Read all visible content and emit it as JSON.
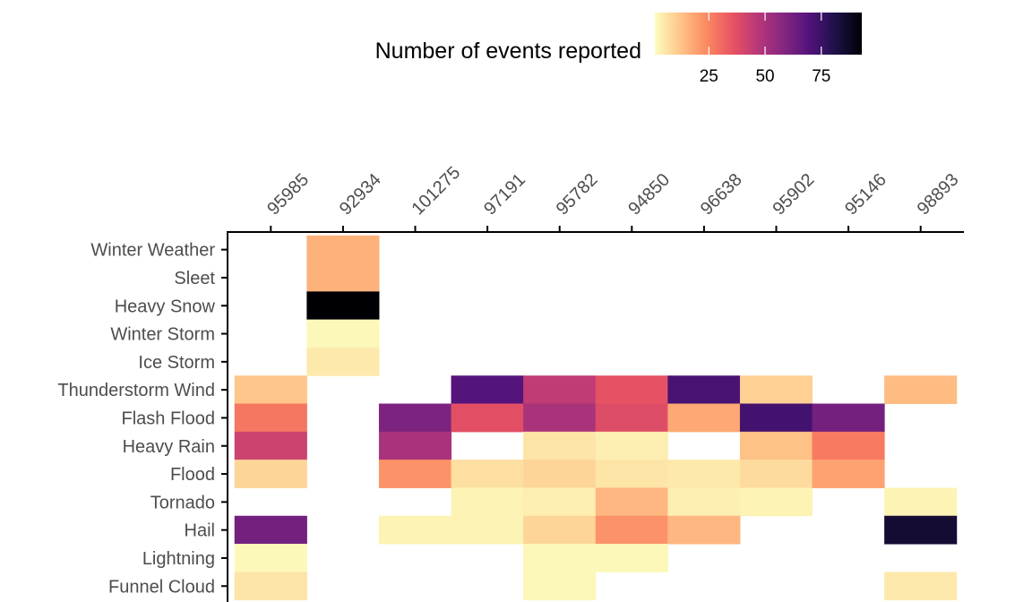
{
  "chart_data": {
    "type": "heatmap",
    "legend": {
      "title": "Number of events reported",
      "ticks": [
        25,
        50,
        75
      ],
      "range": [
        1,
        93
      ],
      "position": "top",
      "colors": [
        "#fcfdbf",
        "#fec488",
        "#fc8961",
        "#e85362",
        "#b73779",
        "#832681",
        "#51127c",
        "#1d1147",
        "#000004"
      ]
    },
    "x_axis": {
      "position": "top",
      "categories": [
        "95985",
        "92934",
        "101275",
        "97191",
        "95782",
        "94850",
        "96638",
        "95902",
        "95146",
        "98893"
      ]
    },
    "y_axis": {
      "categories": [
        "Winter Weather",
        "Sleet",
        "Heavy Snow",
        "Winter Storm",
        "Ice Storm",
        "Thunderstorm Wind",
        "Flash Flood",
        "Heavy Rain",
        "Flood",
        "Tornado",
        "Hail",
        "Lightning",
        "Funnel Cloud"
      ]
    },
    "values": [
      [
        null,
        16,
        null,
        null,
        null,
        null,
        null,
        null,
        null,
        null
      ],
      [
        null,
        16,
        null,
        null,
        null,
        null,
        null,
        null,
        null,
        null
      ],
      [
        null,
        93,
        null,
        null,
        null,
        null,
        null,
        null,
        null,
        null
      ],
      [
        null,
        2,
        null,
        null,
        null,
        null,
        null,
        null,
        null,
        null
      ],
      [
        null,
        5,
        null,
        null,
        null,
        null,
        null,
        null,
        null,
        null
      ],
      [
        12,
        null,
        null,
        69,
        45,
        36,
        72,
        10,
        null,
        14
      ],
      [
        28,
        null,
        60,
        37,
        50,
        38,
        18,
        73,
        62,
        null
      ],
      [
        42,
        null,
        50,
        null,
        6,
        4,
        null,
        13,
        27,
        null
      ],
      [
        9,
        null,
        22,
        7,
        9,
        6,
        5,
        8,
        19,
        null
      ],
      [
        null,
        null,
        null,
        3,
        4,
        15,
        4,
        3,
        null,
        3
      ],
      [
        62,
        null,
        3,
        3,
        9,
        22,
        15,
        null,
        null,
        85
      ],
      [
        2,
        null,
        null,
        null,
        2,
        2,
        null,
        null,
        null,
        null
      ],
      [
        6,
        null,
        null,
        null,
        2,
        null,
        null,
        null,
        null,
        5
      ]
    ]
  }
}
